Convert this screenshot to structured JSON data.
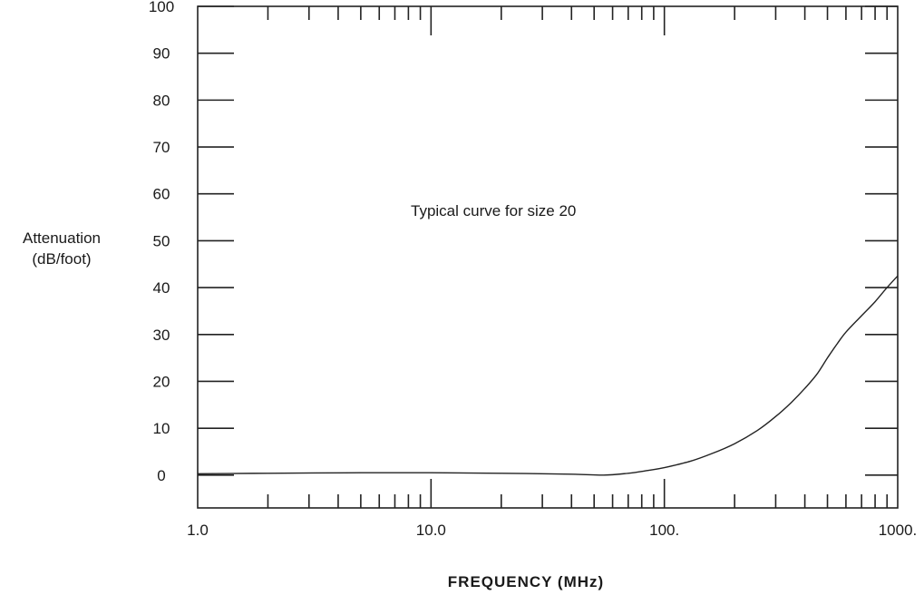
{
  "chart_data": {
    "type": "line",
    "title": "",
    "xlabel": "FREQUENCY  (MHz)",
    "ylabel": [
      "Attenuation",
      "(dB/foot)"
    ],
    "annotation": "Typical curve for size 20",
    "x_scale": "log",
    "xlim": [
      1,
      1000
    ],
    "ylim": [
      -7,
      100
    ],
    "x_tick_labels": [
      {
        "value": 1,
        "label": "1.0"
      },
      {
        "value": 10,
        "label": "10.0"
      },
      {
        "value": 100,
        "label": "100."
      },
      {
        "value": 1000,
        "label": "1000."
      }
    ],
    "y_tick_labels": [
      0,
      10,
      20,
      30,
      40,
      50,
      60,
      70,
      80,
      90,
      100
    ],
    "grid": false,
    "colors": {
      "line": "#222222",
      "axis": "#222222"
    },
    "series": [
      {
        "x": [
          1,
          2,
          5,
          10,
          20,
          40,
          55,
          70,
          85,
          100,
          130,
          160,
          200,
          250,
          300,
          350,
          400,
          450,
          500,
          550,
          600,
          700,
          800,
          900,
          1000
        ],
        "y": [
          0.3,
          0.4,
          0.5,
          0.5,
          0.4,
          0.2,
          0.0,
          0.4,
          1.0,
          1.6,
          3.0,
          4.6,
          6.7,
          9.5,
          12.5,
          15.5,
          18.5,
          21.5,
          25.0,
          28.0,
          30.5,
          34.0,
          37.0,
          40.0,
          42.5
        ]
      }
    ]
  }
}
